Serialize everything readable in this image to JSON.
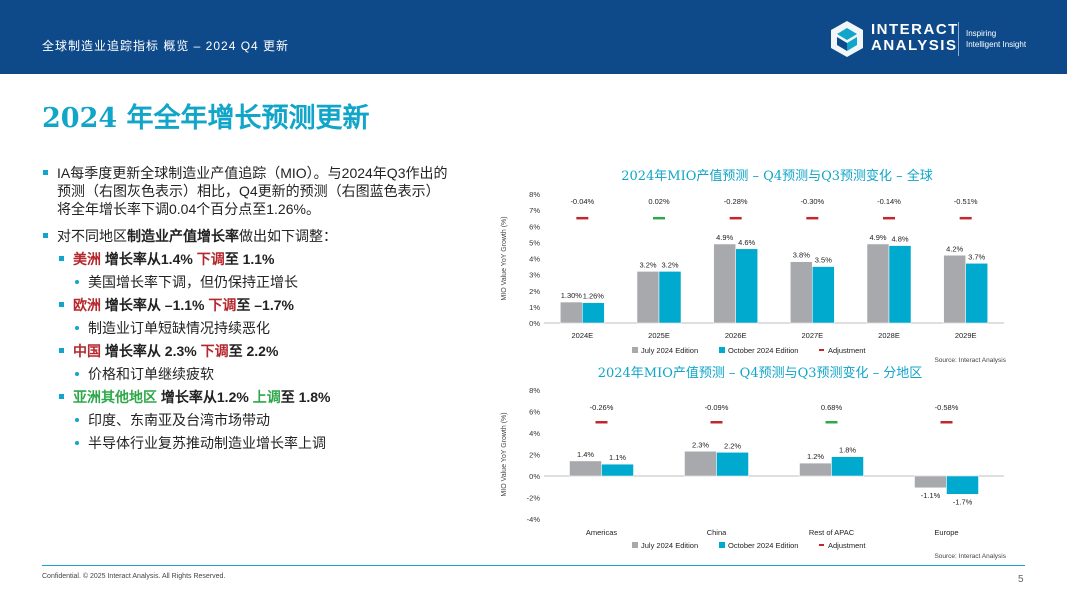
{
  "header": {
    "title": "全球制造业追踪指标 概览 – 2024 Q4 更新",
    "logo_line1": "INTERACT",
    "logo_line2": "ANALYSIS",
    "tagline1": "Inspiring",
    "tagline2": "Intelligent Insight"
  },
  "page_title": "2024 年全年增长预测更新",
  "bullets": {
    "intro": "IA每季度更新全球制造业产值追踪（MIO）。与2024年Q3作出的预测（右图灰色表示）相比，Q4更新的预测（右图蓝色表示）将全年增长率下调0.04个百分点至1.26%。",
    "regions_intro_pre": "对不同地区",
    "regions_intro_bold": "制造业产值增长率",
    "regions_intro_post": "做出如下调整：",
    "americas": {
      "name": "美洲",
      "pre": " 增长率从1.4% ",
      "dir": "下调",
      "post": "至 1.1%",
      "note": "美国增长率下调，但仍保持正增长"
    },
    "europe": {
      "name": "欧洲",
      "pre": " 增长率从 –1.1% ",
      "dir": "下调",
      "post": "至 –1.7%",
      "note": "制造业订单短缺情况持续恶化"
    },
    "china": {
      "name": "中国",
      "pre": " 增长率从 2.3% ",
      "dir": "下调",
      "post": "至 2.2%",
      "note": "价格和订单继续疲软"
    },
    "apac": {
      "name": "亚洲其他地区",
      "pre": " 增长率从1.2% ",
      "dir": "上调",
      "post": "至 1.8%",
      "note1": "印度、东南亚及台湾市场带动",
      "note2": "半导体行业复苏推动制造业增长率上调"
    }
  },
  "colors": {
    "july": "#a7a9ac",
    "october": "#00a9ce",
    "adj_neg": "#c0282d",
    "adj_pos": "#2ea84a"
  },
  "chart_data": [
    {
      "type": "bar",
      "title": "2024年MIO产值预测 – Q4预测与Q3预测变化 – 全球",
      "ylabel": "MIO Value YoY Growth (%)",
      "categories": [
        "2024E",
        "2025E",
        "2026E",
        "2027E",
        "2028E",
        "2029E"
      ],
      "ylim": [
        0,
        8
      ],
      "yticks": [
        0,
        1,
        2,
        3,
        4,
        5,
        6,
        7,
        8
      ],
      "tick_labels": [
        "0%",
        "1%",
        "2%",
        "3%",
        "4%",
        "5%",
        "6%",
        "7%",
        "8%"
      ],
      "series": [
        {
          "name": "July 2024 Edition",
          "values": [
            1.3,
            3.2,
            4.9,
            3.8,
            4.9,
            4.2
          ],
          "labels": [
            "1.30%",
            "3.2%",
            "4.9%",
            "3.8%",
            "4.9%",
            "4.2%"
          ]
        },
        {
          "name": "October 2024 Edition",
          "values": [
            1.26,
            3.2,
            4.6,
            3.5,
            4.8,
            3.7
          ],
          "labels": [
            "1.26%",
            "3.2%",
            "4.6%",
            "3.5%",
            "4.8%",
            "3.7%"
          ]
        }
      ],
      "adjustments": [
        -0.04,
        0.02,
        -0.28,
        -0.3,
        -0.14,
        -0.51
      ],
      "adjustment_labels": [
        "-0.04%",
        "0.02%",
        "-0.28%",
        "-0.30%",
        "-0.14%",
        "-0.51%"
      ],
      "adjustment_marker_y": 6.5,
      "legend": [
        "July 2024 Edition",
        "October 2024 Edition",
        "Adjustment"
      ],
      "source": "Source: Interact Analysis"
    },
    {
      "type": "bar",
      "title": "2024年MIO产值预测 – Q4预测与Q3预测变化 – 分地区",
      "ylabel": "MIO Value YoY Growth (%)",
      "categories": [
        "Americas",
        "China",
        "Rest of APAC",
        "Europe"
      ],
      "ylim": [
        -4,
        8
      ],
      "yticks": [
        -4,
        -2,
        0,
        2,
        4,
        6,
        8
      ],
      "tick_labels": [
        "-4%",
        "-2%",
        "0%",
        "2%",
        "4%",
        "6%",
        "8%"
      ],
      "series": [
        {
          "name": "July 2024 Edition",
          "values": [
            1.4,
            2.3,
            1.2,
            -1.1
          ],
          "labels": [
            "1.4%",
            "2.3%",
            "1.2%",
            "-1.1%"
          ]
        },
        {
          "name": "October 2024 Edition",
          "values": [
            1.1,
            2.2,
            1.8,
            -1.7
          ],
          "labels": [
            "1.1%",
            "2.2%",
            "1.8%",
            "-1.7%"
          ]
        }
      ],
      "adjustments": [
        -0.26,
        -0.09,
        0.68,
        -0.58
      ],
      "adjustment_labels": [
        "-0.26%",
        "-0.09%",
        "0.68%",
        "-0.58%"
      ],
      "adjustment_marker_y": 5.0,
      "legend": [
        "July 2024 Edition",
        "October 2024 Edition",
        "Adjustment"
      ],
      "source": "Source: Interact Analysis"
    }
  ],
  "footer": {
    "confidential": "Confidential. © 2025 Interact Analysis. All Rights Reserved.",
    "page_number": "5"
  }
}
